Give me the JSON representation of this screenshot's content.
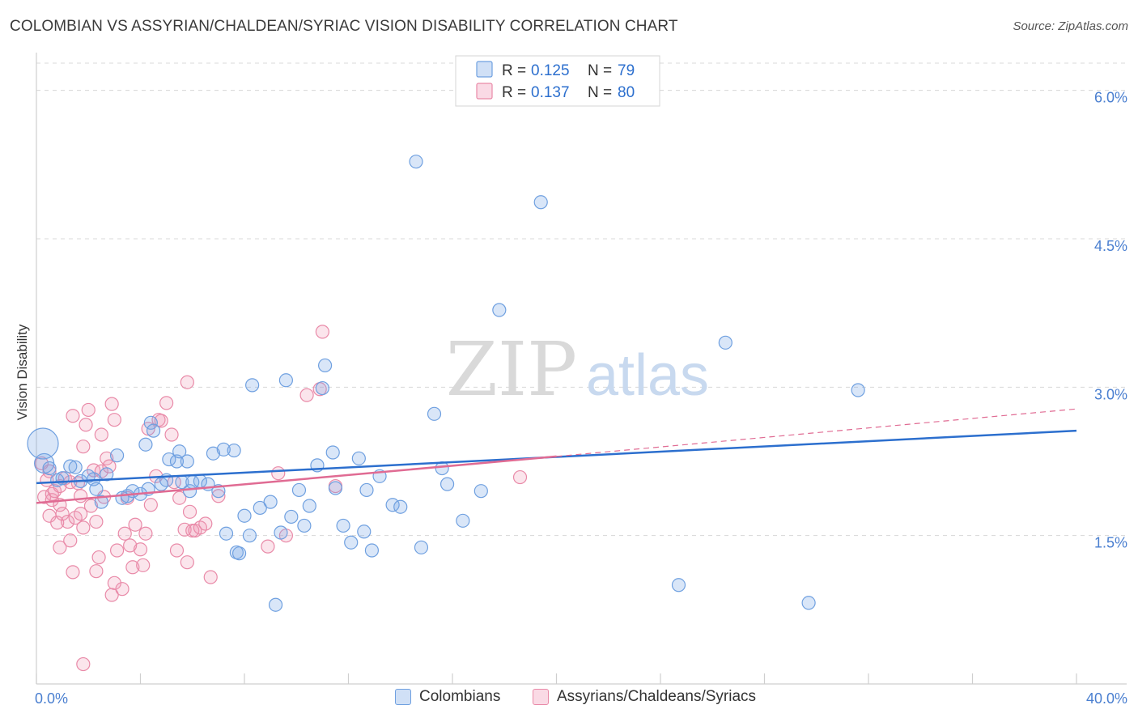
{
  "title": "COLOMBIAN VS ASSYRIAN/CHALDEAN/SYRIAC VISION DISABILITY CORRELATION CHART",
  "source": "Source: ZipAtlas.com",
  "watermark": {
    "zip": "ZIP",
    "atlas": "atlas"
  },
  "colors": {
    "blue": "#6fa0e0",
    "blue_fill": "rgba(120,165,230,0.28)",
    "blue_line": "#2c6fce",
    "pink": "#e98aa8",
    "pink_fill": "rgba(240,150,180,0.25)",
    "pink_line": "#e06b93",
    "tick_label": "#4a7fd0",
    "grid": "#d8d8d8"
  },
  "legend": {
    "rows": [
      {
        "r_label": "R = ",
        "r_value": "0.125",
        "n_label": "N = ",
        "n_value": "79",
        "series": "blue"
      },
      {
        "r_label": "R = ",
        "r_value": "0.137",
        "n_label": "N = ",
        "n_value": "80",
        "series": "pink"
      }
    ]
  },
  "bottom_legend": [
    {
      "label": "Colombians",
      "series": "blue"
    },
    {
      "label": "Assyrians/Chaldeans/Syriacs",
      "series": "pink"
    }
  ],
  "chart_data": {
    "type": "scatter",
    "title": "COLOMBIAN VS ASSYRIAN/CHALDEAN/SYRIAC VISION DISABILITY CORRELATION CHART",
    "xlabel": "",
    "ylabel": "Vision Disability",
    "xlim": [
      0,
      40
    ],
    "ylim": [
      0,
      6.3
    ],
    "y_ticks": [
      1.5,
      3.0,
      4.5,
      6.0
    ],
    "y_tick_labels": [
      "1.5%",
      "3.0%",
      "4.5%",
      "6.0%"
    ],
    "x_tick_labels": [
      "0.0%",
      "40.0%"
    ],
    "grid": true,
    "legend_position": "top-center",
    "series": [
      {
        "name": "Colombians",
        "color": "blue",
        "trend": {
          "x": [
            0,
            40
          ],
          "y": [
            2.03,
            2.56
          ]
        },
        "points": [
          [
            0.25,
            2.43
          ],
          [
            0.3,
            2.23
          ],
          [
            0.5,
            2.18
          ],
          [
            0.8,
            2.06
          ],
          [
            1.0,
            2.08
          ],
          [
            1.3,
            2.2
          ],
          [
            1.5,
            2.19
          ],
          [
            1.7,
            2.05
          ],
          [
            2.0,
            2.1
          ],
          [
            2.2,
            2.07
          ],
          [
            2.3,
            1.97
          ],
          [
            2.5,
            1.84
          ],
          [
            2.7,
            2.12
          ],
          [
            3.1,
            2.31
          ],
          [
            3.3,
            1.88
          ],
          [
            3.5,
            1.9
          ],
          [
            3.7,
            1.95
          ],
          [
            4.0,
            1.92
          ],
          [
            4.2,
            2.42
          ],
          [
            4.3,
            1.97
          ],
          [
            4.4,
            2.64
          ],
          [
            4.5,
            2.56
          ],
          [
            4.8,
            2.02
          ],
          [
            5.0,
            2.06
          ],
          [
            5.1,
            2.27
          ],
          [
            5.4,
            2.25
          ],
          [
            5.5,
            2.35
          ],
          [
            5.6,
            2.04
          ],
          [
            5.8,
            2.25
          ],
          [
            5.9,
            1.95
          ],
          [
            6.0,
            2.04
          ],
          [
            6.3,
            2.05
          ],
          [
            6.6,
            2.02
          ],
          [
            6.8,
            2.33
          ],
          [
            7.0,
            1.95
          ],
          [
            7.2,
            2.37
          ],
          [
            7.6,
            2.36
          ],
          [
            7.3,
            1.52
          ],
          [
            7.7,
            1.33
          ],
          [
            7.8,
            1.32
          ],
          [
            8.0,
            1.7
          ],
          [
            8.2,
            1.5
          ],
          [
            8.3,
            3.02
          ],
          [
            8.6,
            1.78
          ],
          [
            9.0,
            1.84
          ],
          [
            9.2,
            0.8
          ],
          [
            9.4,
            1.53
          ],
          [
            9.6,
            3.07
          ],
          [
            9.8,
            1.69
          ],
          [
            10.1,
            1.96
          ],
          [
            10.3,
            1.6
          ],
          [
            10.5,
            1.8
          ],
          [
            10.8,
            2.21
          ],
          [
            11.0,
            2.99
          ],
          [
            11.1,
            3.22
          ],
          [
            11.4,
            2.34
          ],
          [
            11.5,
            1.98
          ],
          [
            11.8,
            1.6
          ],
          [
            12.1,
            1.43
          ],
          [
            12.4,
            2.28
          ],
          [
            12.6,
            1.54
          ],
          [
            12.7,
            1.96
          ],
          [
            12.9,
            1.35
          ],
          [
            13.2,
            2.1
          ],
          [
            13.7,
            1.81
          ],
          [
            14.0,
            1.79
          ],
          [
            14.6,
            5.28
          ],
          [
            14.8,
            1.38
          ],
          [
            15.3,
            2.73
          ],
          [
            15.6,
            2.18
          ],
          [
            15.8,
            2.02
          ],
          [
            16.4,
            1.65
          ],
          [
            17.1,
            1.95
          ],
          [
            17.8,
            3.78
          ],
          [
            19.4,
            4.87
          ],
          [
            24.7,
            1.0
          ],
          [
            26.5,
            3.45
          ],
          [
            29.7,
            0.82
          ],
          [
            31.6,
            2.97
          ]
        ]
      },
      {
        "name": "Assyrians/Chaldeans/Syriacs",
        "color": "pink",
        "trend": {
          "x": [
            0,
            20
          ],
          "y": [
            1.83,
            2.3
          ]
        },
        "trend_extension": {
          "x": [
            20,
            40
          ],
          "y": [
            2.3,
            2.78
          ]
        },
        "points": [
          [
            0.2,
            2.23
          ],
          [
            0.3,
            1.89
          ],
          [
            0.4,
            2.06
          ],
          [
            0.5,
            2.15
          ],
          [
            0.5,
            1.7
          ],
          [
            0.6,
            1.92
          ],
          [
            0.6,
            1.86
          ],
          [
            0.7,
            1.95
          ],
          [
            0.8,
            1.63
          ],
          [
            0.9,
            2.0
          ],
          [
            0.9,
            1.81
          ],
          [
            0.9,
            1.38
          ],
          [
            1.0,
            1.72
          ],
          [
            1.1,
            2.08
          ],
          [
            1.2,
            1.64
          ],
          [
            1.3,
            2.04
          ],
          [
            1.3,
            1.45
          ],
          [
            1.4,
            2.71
          ],
          [
            1.4,
            1.13
          ],
          [
            1.5,
            1.68
          ],
          [
            1.6,
            2.03
          ],
          [
            1.7,
            1.9
          ],
          [
            1.7,
            1.72
          ],
          [
            1.8,
            2.4
          ],
          [
            1.8,
            1.58
          ],
          [
            1.8,
            0.2
          ],
          [
            1.9,
            2.62
          ],
          [
            2.0,
            2.77
          ],
          [
            2.1,
            1.8
          ],
          [
            2.2,
            2.16
          ],
          [
            2.3,
            1.64
          ],
          [
            2.3,
            1.14
          ],
          [
            2.4,
            1.28
          ],
          [
            2.5,
            2.52
          ],
          [
            2.5,
            2.15
          ],
          [
            2.6,
            1.89
          ],
          [
            2.7,
            2.28
          ],
          [
            2.8,
            2.2
          ],
          [
            2.9,
            2.83
          ],
          [
            3.0,
            2.67
          ],
          [
            2.9,
            0.9
          ],
          [
            3.0,
            1.02
          ],
          [
            3.1,
            1.35
          ],
          [
            3.3,
            0.96
          ],
          [
            3.4,
            1.52
          ],
          [
            3.5,
            1.88
          ],
          [
            3.6,
            1.4
          ],
          [
            3.7,
            1.18
          ],
          [
            3.8,
            1.61
          ],
          [
            4.0,
            1.36
          ],
          [
            4.1,
            1.2
          ],
          [
            4.2,
            1.52
          ],
          [
            4.3,
            2.58
          ],
          [
            4.4,
            1.81
          ],
          [
            4.6,
            2.1
          ],
          [
            4.7,
            2.67
          ],
          [
            4.8,
            2.66
          ],
          [
            5.0,
            2.84
          ],
          [
            5.2,
            2.52
          ],
          [
            5.3,
            2.04
          ],
          [
            5.4,
            1.35
          ],
          [
            5.5,
            1.88
          ],
          [
            5.7,
            1.56
          ],
          [
            5.8,
            3.05
          ],
          [
            5.8,
            1.23
          ],
          [
            5.9,
            1.74
          ],
          [
            6.0,
            1.55
          ],
          [
            6.1,
            1.55
          ],
          [
            6.3,
            1.58
          ],
          [
            6.5,
            1.62
          ],
          [
            6.7,
            1.08
          ],
          [
            7.0,
            1.9
          ],
          [
            8.9,
            1.39
          ],
          [
            9.3,
            2.13
          ],
          [
            9.6,
            1.5
          ],
          [
            10.4,
            2.92
          ],
          [
            10.9,
            2.98
          ],
          [
            11.0,
            3.56
          ],
          [
            11.5,
            2.0
          ],
          [
            18.6,
            2.09
          ]
        ]
      }
    ]
  }
}
